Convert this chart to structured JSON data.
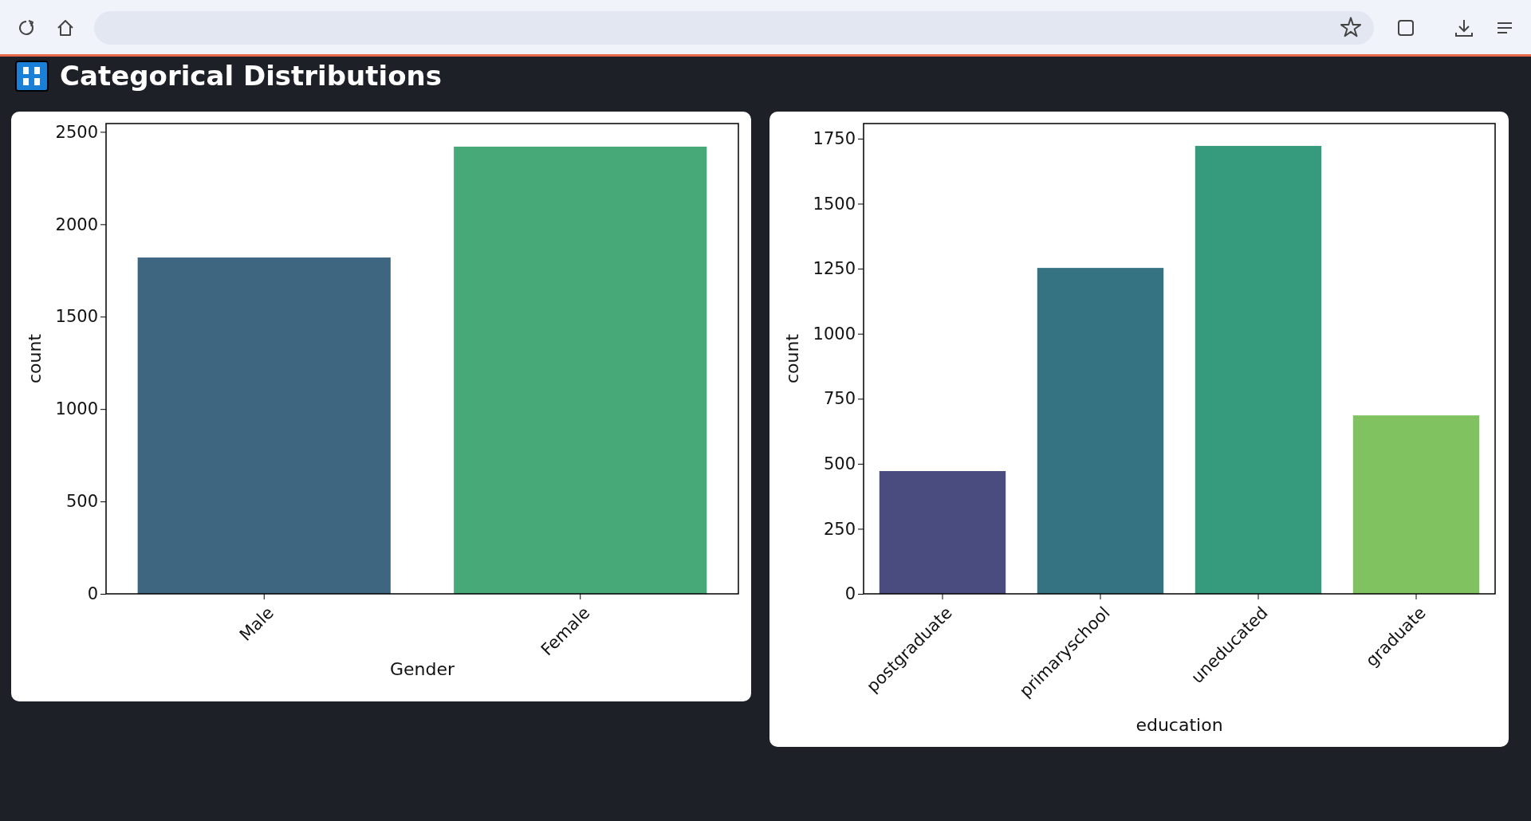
{
  "chart_data": [
    {
      "type": "bar",
      "title": "Categorical Distributions",
      "xlabel": "Gender",
      "ylabel": "count",
      "categories": [
        "Male",
        "Female"
      ],
      "values": [
        1820,
        2420
      ],
      "colors": [
        "#3e6680",
        "#47a878"
      ],
      "ylim": [
        0,
        2545
      ],
      "yticks": [
        0,
        500,
        1000,
        1500,
        2000,
        2500
      ]
    },
    {
      "type": "bar",
      "xlabel": "education",
      "ylabel": "count",
      "categories": [
        "postgraduate",
        "primaryschool",
        "uneducated",
        "graduate"
      ],
      "values": [
        472,
        1253,
        1722,
        686
      ],
      "colors": [
        "#4a4c7f",
        "#357383",
        "#369b7d",
        "#7fc25f"
      ],
      "ylim": [
        0,
        1808
      ],
      "yticks": [
        0,
        250,
        500,
        750,
        1000,
        1250,
        1500,
        1750
      ]
    }
  ]
}
